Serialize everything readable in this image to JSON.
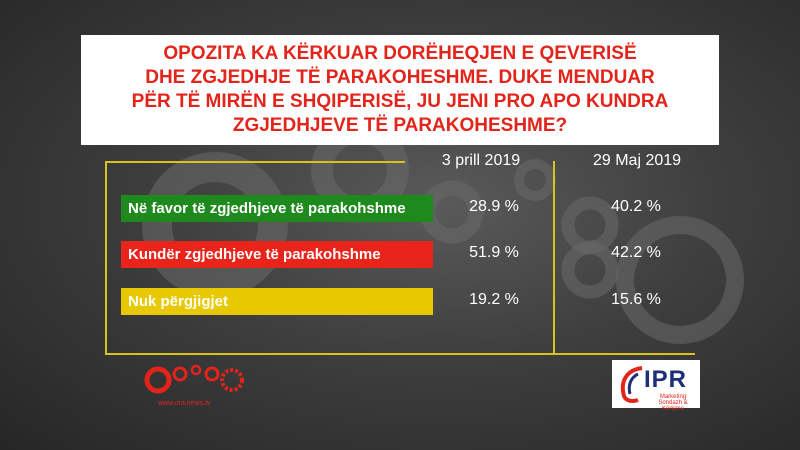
{
  "title": "OPOZITA KA KËRKUAR DORËHEQJEN E QEVERISË\nDHE ZGJEDHJE TË PARAKOHESHME. DUKE MENDUAR\nPËR TË MIRËN E SHQIPERISË,  JU JENI PRO APO KUNDRA\nZGJEDHJEVE TË PARAKOHESHME?",
  "colors": {
    "green": "#1e8a1e",
    "red": "#e8241b",
    "yellow": "#e8c800",
    "frame": "#d9c21e",
    "title_text": "#e3241b"
  },
  "chart_data": {
    "type": "table",
    "title": "OPOZITA KA KËRKUAR DORËHEQJEN E QEVERISË DHE ZGJEDHJE TË PARAKOHESHME. DUKE MENDUAR PËR TË MIRËN E SHQIPERISË,  JU JENI PRO APO KUNDRA ZGJEDHJEVE TË PARAKOHESHME?",
    "columns": [
      "3 prill 2019",
      "29 Maj 2019"
    ],
    "rows": [
      {
        "label": "Në favor të zgjedhjeve të parakohshme",
        "color": "#1e8a1e",
        "values": [
          "28.9 %",
          "40.2 %"
        ]
      },
      {
        "label": "Kundër zgjedhjeve të parakohshme",
        "color": "#e8241b",
        "values": [
          "51.9 %",
          "42.2 %"
        ]
      },
      {
        "label": "Nuk përgjigjet",
        "color": "#e8c800",
        "values": [
          "19.2 %",
          "15.6 %"
        ]
      }
    ]
  },
  "logos": {
    "left_url": "www.ora.news.tv",
    "right_name": "IPR",
    "right_sub": "Marketing Sondazh & Kërkime"
  }
}
